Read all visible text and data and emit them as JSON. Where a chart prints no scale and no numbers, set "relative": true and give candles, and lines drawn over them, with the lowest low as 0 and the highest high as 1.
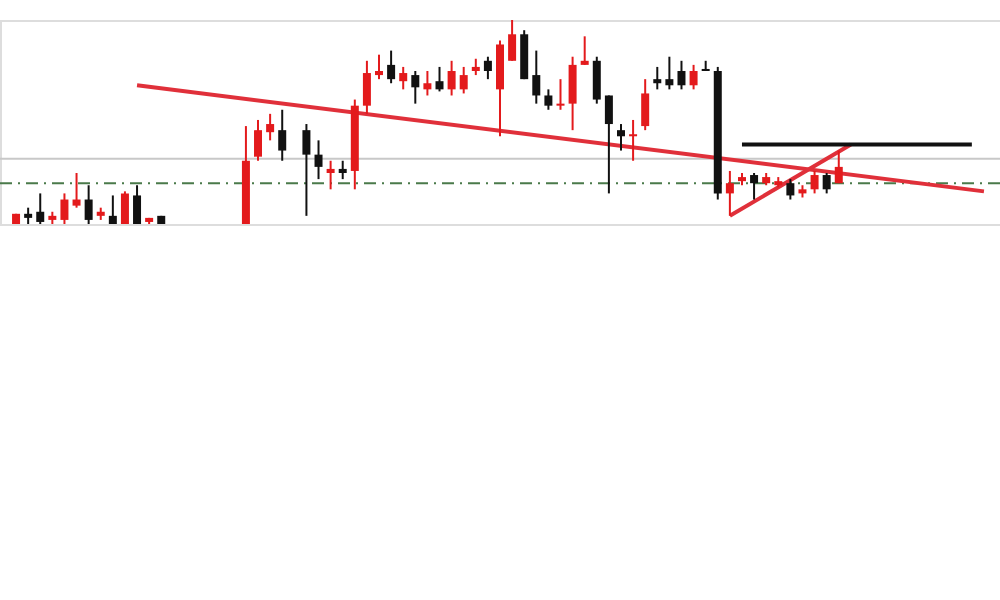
{
  "chart_data": {
    "type": "candlestick",
    "relative": true,
    "categories": [
      null,
      null,
      null,
      null,
      null,
      null,
      null,
      null,
      null,
      null,
      null,
      null,
      null,
      null,
      null,
      null,
      null,
      null,
      null,
      null,
      null,
      null,
      null,
      null,
      null,
      null,
      null,
      null,
      null,
      null,
      null,
      null,
      null,
      null,
      null,
      null,
      null,
      null,
      null,
      null,
      null,
      null,
      null,
      null,
      null,
      null,
      null,
      null,
      null,
      null,
      null,
      null,
      null,
      null,
      null,
      null,
      null,
      null,
      null,
      null,
      null,
      null,
      null,
      null,
      null,
      null,
      null,
      null,
      null,
      null,
      null,
      null,
      null,
      null,
      null,
      null,
      null,
      null,
      null,
      null,
      null
    ],
    "ohlc": [
      [
        0,
        0.05,
        0,
        0.05
      ],
      [
        0.05,
        0.08,
        0,
        0.03
      ],
      [
        0.06,
        0.15,
        0,
        0.01
      ],
      [
        0.02,
        0.06,
        0,
        0.04
      ],
      [
        0.02,
        0.15,
        0,
        0.12
      ],
      [
        0.09,
        0.25,
        0.08,
        0.12
      ],
      [
        0.12,
        0.19,
        0,
        0.02
      ],
      [
        0.04,
        0.08,
        0.02,
        0.06
      ],
      [
        0.04,
        0.14,
        0,
        0
      ],
      [
        0,
        0.16,
        0,
        0.15
      ],
      [
        0.14,
        0.19,
        0,
        0
      ],
      [
        0.01,
        0.03,
        0,
        0.03
      ],
      [
        0.04,
        0.04,
        0,
        0
      ],
      null,
      null,
      null,
      null,
      null,
      null,
      [
        0,
        0.48,
        0,
        0.31
      ],
      [
        0.33,
        0.51,
        0.31,
        0.46
      ],
      [
        0.45,
        0.54,
        0.41,
        0.49
      ],
      [
        0.46,
        0.56,
        0.31,
        0.36
      ],
      null,
      [
        0.46,
        0.49,
        0.04,
        0.34
      ],
      [
        0.34,
        0.41,
        0.22,
        0.28
      ],
      [
        0.25,
        0.31,
        0.17,
        0.27
      ],
      [
        0.27,
        0.31,
        0.22,
        0.25
      ],
      [
        0.26,
        0.61,
        0.17,
        0.58
      ],
      [
        0.58,
        0.8,
        0.54,
        0.74
      ],
      [
        0.73,
        0.83,
        0.71,
        0.75
      ],
      [
        0.78,
        0.85,
        0.69,
        0.71
      ],
      [
        0.7,
        0.77,
        0.66,
        0.74
      ],
      [
        0.73,
        0.75,
        0.59,
        0.67
      ],
      [
        0.66,
        0.75,
        0.63,
        0.69
      ],
      [
        0.7,
        0.77,
        0.65,
        0.66
      ],
      [
        0.66,
        0.8,
        0.63,
        0.75
      ],
      [
        0.66,
        0.77,
        0.64,
        0.73
      ],
      [
        0.75,
        0.81,
        0.73,
        0.77
      ],
      [
        0.8,
        0.82,
        0.71,
        0.75
      ],
      [
        0.66,
        0.9,
        0.43,
        0.88
      ],
      [
        0.8,
        1.0,
        0.8,
        0.93
      ],
      [
        0.93,
        0.95,
        0.71,
        0.71
      ],
      [
        0.73,
        0.85,
        0.59,
        0.63
      ],
      [
        0.63,
        0.66,
        0.56,
        0.58
      ],
      [
        0.58,
        0.71,
        0.56,
        0.59
      ],
      [
        0.59,
        0.82,
        0.46,
        0.78
      ],
      [
        0.78,
        0.92,
        0.78,
        0.8
      ],
      [
        0.8,
        0.82,
        0.59,
        0.61
      ],
      [
        0.63,
        0.63,
        0.15,
        0.49
      ],
      [
        0.46,
        0.49,
        0.36,
        0.43
      ],
      [
        0.43,
        0.51,
        0.31,
        0.44
      ],
      [
        0.48,
        0.71,
        0.46,
        0.64
      ],
      [
        0.71,
        0.77,
        0.66,
        0.69
      ],
      [
        0.71,
        0.82,
        0.66,
        0.68
      ],
      [
        0.75,
        0.8,
        0.66,
        0.68
      ],
      [
        0.68,
        0.78,
        0.66,
        0.75
      ],
      [
        0.76,
        0.8,
        0.75,
        0.75
      ],
      [
        0.75,
        0.77,
        0.12,
        0.15
      ],
      [
        0.15,
        0.26,
        0.04,
        0.2
      ],
      [
        0.21,
        0.25,
        0.19,
        0.23
      ],
      [
        0.24,
        0.25,
        0.12,
        0.2
      ],
      [
        0.2,
        0.25,
        0.19,
        0.23
      ],
      [
        0.19,
        0.23,
        0.18,
        0.21
      ],
      [
        0.2,
        0.22,
        0.12,
        0.14
      ],
      [
        0.15,
        0.19,
        0.13,
        0.17
      ],
      [
        0.17,
        0.26,
        0.15,
        0.24
      ],
      [
        0.24,
        0.25,
        0.15,
        0.17
      ],
      [
        0.2,
        0.36,
        0.2,
        0.28
      ],
      null,
      null,
      null,
      null,
      null,
      null,
      null,
      null,
      null,
      null,
      null,
      null
    ],
    "colors": [
      "#e31a1c",
      "#111111",
      "#111111",
      "#e31a1c",
      "#e31a1c",
      "#e31a1c",
      "#111111",
      "#e31a1c",
      "#111111",
      "#e31a1c",
      "#111111",
      "#e31a1c",
      "#111111",
      null,
      null,
      null,
      null,
      null,
      null,
      "#e31a1c",
      "#e31a1c",
      "#e31a1c",
      "#111111",
      null,
      "#111111",
      "#111111",
      "#e31a1c",
      "#111111",
      "#e31a1c",
      "#e31a1c",
      "#e31a1c",
      "#111111",
      "#e31a1c",
      "#111111",
      "#e31a1c",
      "#111111",
      "#e31a1c",
      "#e31a1c",
      "#e31a1c",
      "#111111",
      "#e31a1c",
      "#e31a1c",
      "#111111",
      "#111111",
      "#111111",
      "#e31a1c",
      "#e31a1c",
      "#e31a1c",
      "#111111",
      "#111111",
      "#111111",
      "#e31a1c",
      "#e31a1c",
      "#111111",
      "#111111",
      "#111111",
      "#e31a1c",
      "#111111",
      "#111111",
      "#e31a1c",
      "#e31a1c",
      "#111111",
      "#e31a1c",
      "#e31a1c",
      "#111111",
      "#e31a1c",
      "#e31a1c",
      "#111111",
      "#e31a1c",
      null,
      null,
      null,
      null,
      null,
      null,
      null,
      null,
      null,
      null,
      null,
      null
    ],
    "series": [
      {
        "type": "line",
        "values": [
          null,
          null,
          null,
          null,
          null,
          null,
          null,
          null,
          null,
          null,
          0.68,
          null,
          null,
          null,
          null,
          null,
          null,
          null,
          null,
          null,
          null,
          null,
          null,
          null,
          null,
          null,
          null,
          null,
          null,
          null,
          null,
          null,
          null,
          null,
          null,
          null,
          null,
          null,
          null,
          null,
          null,
          null,
          null,
          null,
          null,
          null,
          null,
          null,
          null,
          null,
          null,
          null,
          null,
          null,
          null,
          null,
          null,
          null,
          null,
          null,
          null,
          null,
          null,
          null,
          null,
          null,
          null,
          null,
          null,
          null,
          null,
          null,
          null,
          null,
          null,
          null,
          null,
          null,
          null,
          null,
          0.16
        ],
        "color": "#e0303a"
      },
      {
        "type": "line",
        "values": [
          null,
          null,
          null,
          null,
          null,
          null,
          null,
          null,
          null,
          null,
          null,
          null,
          null,
          null,
          null,
          null,
          null,
          null,
          null,
          null,
          null,
          null,
          null,
          null,
          null,
          null,
          null,
          null,
          null,
          null,
          null,
          null,
          null,
          null,
          null,
          null,
          null,
          null,
          null,
          null,
          null,
          null,
          null,
          null,
          null,
          null,
          null,
          null,
          null,
          null,
          null,
          null,
          null,
          null,
          null,
          null,
          null,
          null,
          null,
          0.04,
          null,
          null,
          null,
          null,
          null,
          null,
          null,
          null,
          null,
          0.39,
          null,
          null,
          null,
          null,
          null,
          null,
          null,
          null,
          null,
          null,
          null
        ],
        "color": "#e0303a"
      },
      {
        "type": "line",
        "values": [
          null,
          null,
          null,
          null,
          null,
          null,
          null,
          null,
          null,
          null,
          null,
          null,
          null,
          null,
          null,
          null,
          null,
          null,
          null,
          null,
          null,
          null,
          null,
          null,
          null,
          null,
          null,
          null,
          null,
          null,
          null,
          null,
          null,
          null,
          null,
          null,
          null,
          null,
          null,
          null,
          null,
          null,
          null,
          null,
          null,
          null,
          null,
          null,
          null,
          null,
          null,
          null,
          null,
          null,
          null,
          null,
          null,
          null,
          null,
          null,
          0.39,
          null,
          null,
          null,
          null,
          null,
          null,
          null,
          null,
          null,
          null,
          null,
          null,
          null,
          null,
          null,
          null,
          null,
          null,
          0.39,
          null
        ],
        "color": "#111111"
      }
    ],
    "ref_lines": [
      {
        "axis": "y",
        "value": 0.32,
        "color": "#c8c8c8",
        "line_style": "solid"
      },
      {
        "axis": "y",
        "value": 0.2,
        "color": "#4a7a4a",
        "line_style": "dashed"
      }
    ]
  }
}
